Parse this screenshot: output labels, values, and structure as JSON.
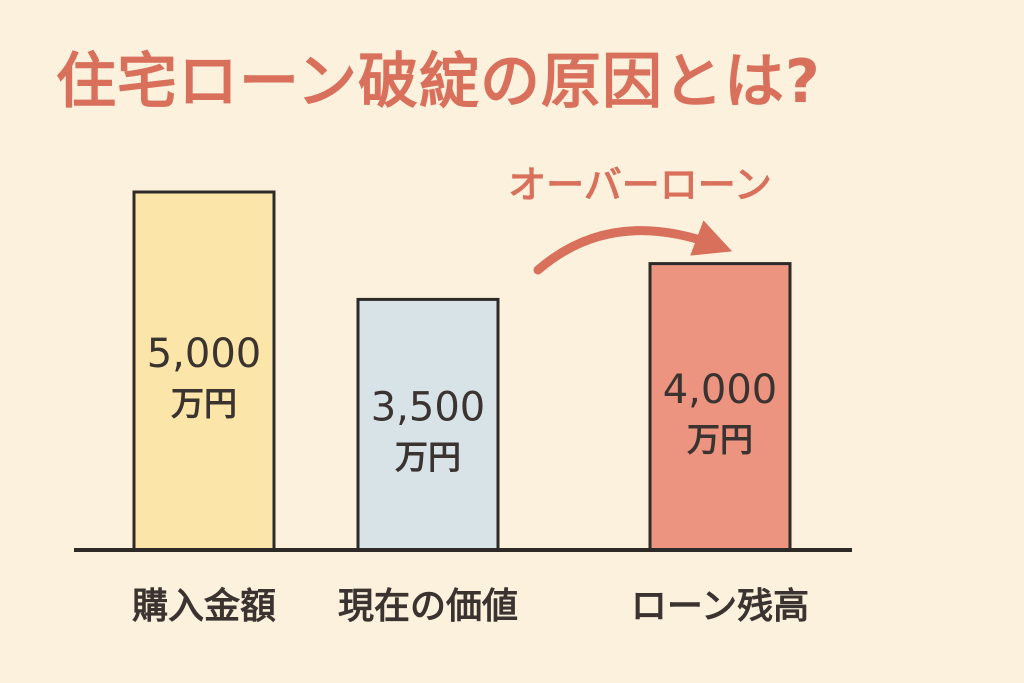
{
  "colors": {
    "background": "#fcf1dd",
    "title": "#d8705c",
    "annotation": "#d8705c",
    "text": "#3a3330",
    "outline": "#2e2a28"
  },
  "chart_data": {
    "type": "bar",
    "title": "住宅ローン破綻の原因とは?",
    "xlabel": "",
    "ylabel": "",
    "unit": "万円",
    "ylim": [
      0,
      5200
    ],
    "grid": false,
    "categories": [
      "購入金額",
      "現在の価値",
      "ローン残高"
    ],
    "values": [
      5000,
      3500,
      4000
    ],
    "value_labels": [
      "5,000",
      "3,500",
      "4,000"
    ],
    "bar_colors": [
      "#fbe5a8",
      "#d8e3e8",
      "#ec9480"
    ],
    "annotation": {
      "text": "オーバーローン",
      "arrow_from": "現在の価値",
      "arrow_to": "ローン残高"
    }
  }
}
